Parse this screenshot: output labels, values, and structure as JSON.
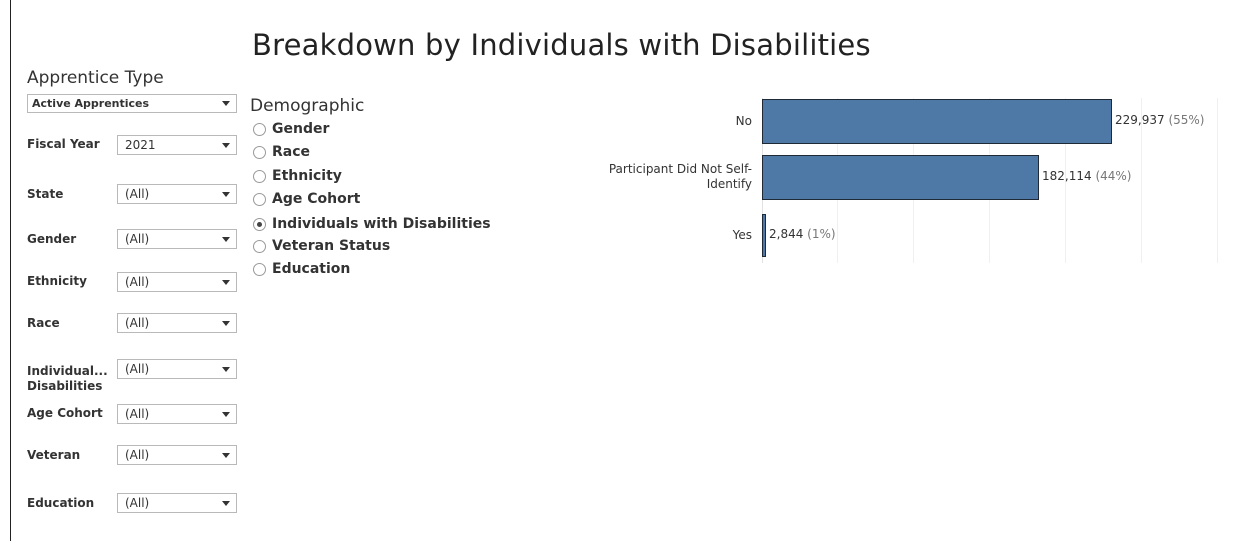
{
  "title": "Breakdown by Individuals with Disabilities",
  "apprentice_type": {
    "label": "Apprentice Type",
    "value": "Active Apprentices"
  },
  "filters": [
    {
      "label": "Fiscal Year",
      "value": "2021"
    },
    {
      "label": "State",
      "value": "(All)"
    },
    {
      "label": "Gender",
      "value": "(All)"
    },
    {
      "label": "Ethnicity",
      "value": "(All)"
    },
    {
      "label": "Race",
      "value": "(All)"
    },
    {
      "label": "Individual...",
      "label2": "Disabilities",
      "value": "(All)"
    },
    {
      "label": "Age Cohort",
      "value": "(All)"
    },
    {
      "label": "Veteran",
      "value": "(All)"
    },
    {
      "label": "Education",
      "value": "(All)"
    }
  ],
  "demographic": {
    "label": "Demographic",
    "options": [
      "Gender",
      "Race",
      "Ethnicity",
      "Age Cohort",
      "Individuals with Disabilities",
      "Veteran Status",
      "Education"
    ],
    "selected": "Individuals with Disabilities"
  },
  "colors": {
    "bar": "#4e79a7",
    "bar_border": "#1f2a36"
  },
  "chart_data": {
    "type": "bar",
    "orientation": "horizontal",
    "categories": [
      "No",
      "Participant Did Not Self-Identify",
      "Yes"
    ],
    "category_lines": [
      [
        "No"
      ],
      [
        "Participant Did Not Self-",
        "Identify"
      ],
      [
        "Yes"
      ]
    ],
    "values": [
      229937,
      182114,
      2844
    ],
    "value_labels": [
      "229,937",
      "182,114",
      "2,844"
    ],
    "pct_labels": [
      "(55%)",
      "(44%)",
      "(1%)"
    ],
    "xlim": [
      0,
      300000
    ],
    "grid": true
  }
}
